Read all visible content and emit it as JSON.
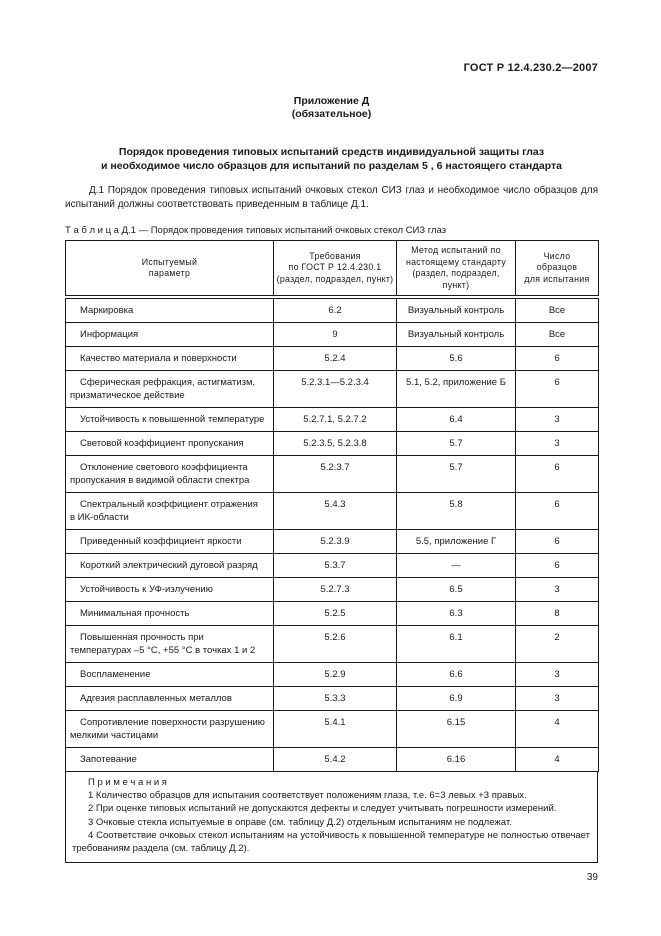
{
  "colors": {
    "ink": "#1a1a1a",
    "paper": "#ffffff"
  },
  "page": {
    "header_right": "ГОСТ Р 12.4.230.2—2007",
    "appendix_title": "Приложение Д",
    "appendix_subtitle": "(обязательное)",
    "doc_title_line1": "Порядок проведения типовых испытаний средств индивидуальной защиты глаз",
    "doc_title_line2": "и необходимое число образцов для испытаний по разделам 5 , 6 настоящего стандарта",
    "intro_paragraph": "Д.1 Порядок проведения типовых испытаний очковых стекол СИЗ глаз и необходимое число образцов для испытаний должны соответствовать приведенным в таблице Д.1.",
    "table_caption": "Т а б л и ц а   Д.1 — Порядок проведения типовых испытаний очковых стекол СИЗ глаз",
    "page_number": "39"
  },
  "table": {
    "headers": [
      {
        "lines": [
          "Испытуемый",
          "параметр"
        ]
      },
      {
        "lines": [
          "Требования",
          "по ГОСТ Р 12.4.230.1",
          "(раздел, подраздел, пункт)"
        ]
      },
      {
        "lines": [
          "Метод испытаний по",
          "настоящему стандарту",
          "(раздел, подраздел, пункт)"
        ]
      },
      {
        "lines": [
          "Число",
          "образцов",
          "для испытания"
        ]
      }
    ],
    "rows": [
      {
        "param": "Маркировка",
        "req": "6.2",
        "method": "Визуальный контроль",
        "count": "Все"
      },
      {
        "param": "Информация",
        "req": "9",
        "method": "Визуальный контроль",
        "count": "Все"
      },
      {
        "param": "Качество материала и поверхности",
        "req": "5.2.4",
        "method": "5.6",
        "count": "6"
      },
      {
        "param": "Сферическая рефракция, астигматизм, призматическое действие",
        "req": "5.2.3.1—5.2.3.4",
        "method": "5.1, 5.2, приложение Б",
        "count": "6"
      },
      {
        "param": "Устойчивость к повышенной температуре",
        "req": "5.2.7.1, 5.2.7.2",
        "method": "6.4",
        "count": "3"
      },
      {
        "param": "Световой коэффициент пропускания",
        "req": "5.2.3.5, 5.2.3.8",
        "method": "5.7",
        "count": "3"
      },
      {
        "param": "Отклонение светового коэффициента пропускания в видимой области спектра",
        "req": "5.2.3.7",
        "method": "5.7",
        "count": "6"
      },
      {
        "param": "Спектральный коэффициент отражения в ИК-области",
        "req": "5.4.3",
        "method": "5.8",
        "count": "6"
      },
      {
        "param": "Приведенный коэффициент яркости",
        "req": "5.2.3.9",
        "method": "5.5, приложение Г",
        "count": "6"
      },
      {
        "param": "Короткий электрический дуговой разряд",
        "req": "5.3.7",
        "method": "—",
        "count": "6"
      },
      {
        "param": "Устойчивость к УФ-излучению",
        "req": "5.2.7.3",
        "method": "6.5",
        "count": "3"
      },
      {
        "param": "Минимальная прочность",
        "req": "5.2.5",
        "method": "6.3",
        "count": "8"
      },
      {
        "param": "Повышенная прочность при температурах –5 °С, +55 °С в точках 1 и 2",
        "req": "5.2.6",
        "method": "6.1",
        "count": "2"
      },
      {
        "param": "Воспламенение",
        "req": "5.2.9",
        "method": "6.6",
        "count": "3"
      },
      {
        "param": "Адгезия расплавленных металлов",
        "req": "5.3.3",
        "method": "6.9",
        "count": "3"
      },
      {
        "param": "Сопротивление поверхности разрушению мелкими частицами",
        "req": "5.4.1",
        "method": "6.15",
        "count": "4"
      },
      {
        "param": "Запотевание",
        "req": "5.4.2",
        "method": "6.16",
        "count": "4"
      }
    ]
  },
  "notes": {
    "title": "П р и м е ч а н и я",
    "items": [
      "1 Количество образцов для испытания соответствует положениям глаза, т.е. 6=3 левых +3 правых.",
      "2 При оценке типовых испытаний не допускаются дефекты и следует учитывать погрешности измерений.",
      "3 Очковые стекла испытуемые в оправе (см. таблицу Д.2) отдельным испытаниям не подлежат.",
      "4 Соответствие очковых стекол испытаниям на устойчивость к повышенной температуре не полностью отвечает требованиям раздела (см. таблицу Д.2)."
    ]
  }
}
